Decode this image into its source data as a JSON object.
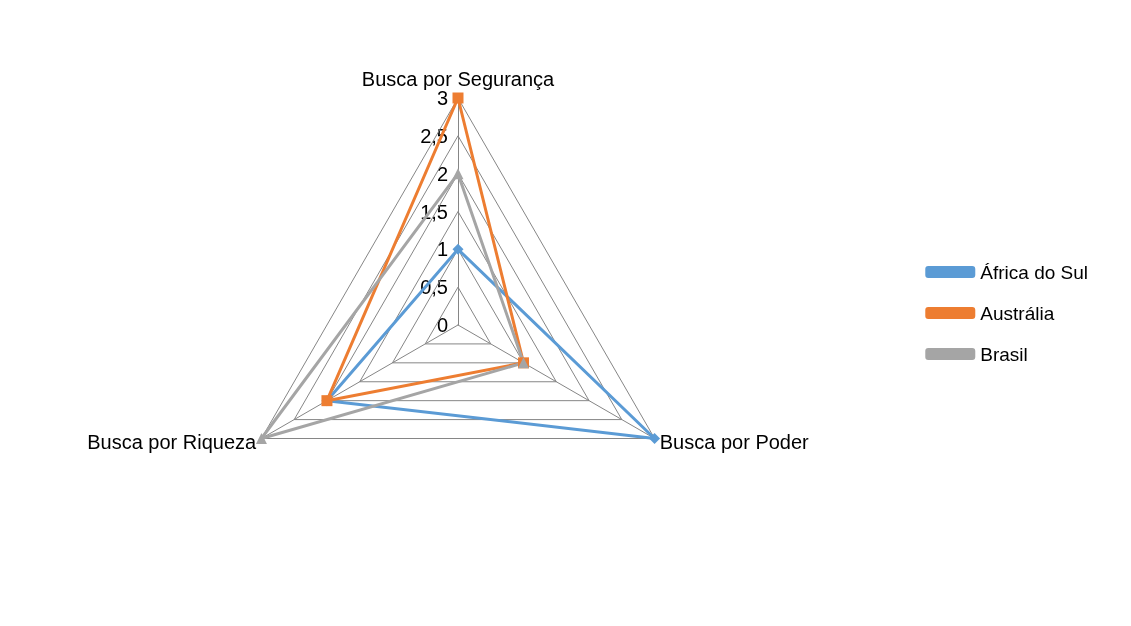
{
  "chart_data": {
    "type": "radar",
    "categories": [
      "Busca por Segurança",
      "Busca por Poder",
      "Busca por Riqueza"
    ],
    "series": [
      {
        "name": "África do Sul",
        "color": "#5b9bd5",
        "marker": "diamond",
        "values": [
          1,
          3,
          2
        ]
      },
      {
        "name": "Austrália",
        "color": "#ed7d31",
        "marker": "square",
        "values": [
          3,
          1,
          2
        ]
      },
      {
        "name": "Brasil",
        "color": "#a5a5a5",
        "marker": "triangle",
        "values": [
          2,
          1,
          3
        ]
      }
    ],
    "ylim": [
      0,
      3
    ],
    "yticks": [
      0,
      {
        "value": 0.5,
        "label": "0,5"
      },
      1,
      {
        "value": 1.5,
        "label": "1,5"
      },
      2,
      {
        "value": 2.5,
        "label": "2,5"
      },
      3
    ],
    "grid": true,
    "legend": "right"
  }
}
